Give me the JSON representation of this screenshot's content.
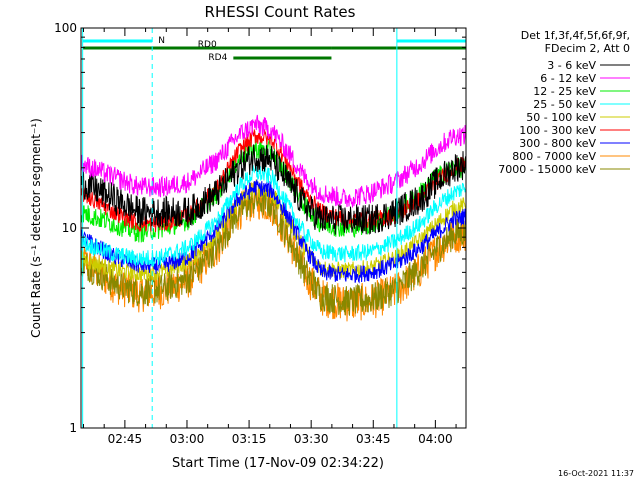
{
  "chart_data": {
    "type": "line",
    "title": "RHESSI Count Rates",
    "xlabel": "Start Time (17-Nov-09 02:34:22)",
    "ylabel": "Count Rate (s⁻¹ detector segment⁻¹)",
    "yscale": "log",
    "ylim": [
      1,
      100
    ],
    "xlim_minutes": [
      0,
      93
    ],
    "x_ticks": [
      {
        "label": "02:45",
        "t": 10.6
      },
      {
        "label": "03:00",
        "t": 25.6
      },
      {
        "label": "03:15",
        "t": 40.6
      },
      {
        "label": "03:30",
        "t": 55.6
      },
      {
        "label": "03:45",
        "t": 70.6
      },
      {
        "label": "04:00",
        "t": 85.6
      }
    ],
    "y_ticks": [
      {
        "label": "1",
        "v": 1
      },
      {
        "label": "10",
        "v": 10
      },
      {
        "label": "100",
        "v": 100
      }
    ],
    "legend": {
      "placement": "right",
      "header_lines": [
        "Det 1f,3f,4f,5f,6f,9f,",
        "FDecim 2, Att 0"
      ]
    },
    "series": [
      {
        "name": "3 - 6 keV",
        "color": "#000000",
        "noise": 0.18,
        "points": [
          [
            0,
            17
          ],
          [
            8,
            14
          ],
          [
            14,
            12
          ],
          [
            20,
            12
          ],
          [
            26,
            12
          ],
          [
            33,
            15
          ],
          [
            38,
            20
          ],
          [
            42,
            23
          ],
          [
            46,
            22
          ],
          [
            50,
            17
          ],
          [
            54,
            13
          ],
          [
            58,
            11
          ],
          [
            64,
            11
          ],
          [
            70,
            11
          ],
          [
            76,
            12
          ],
          [
            82,
            14
          ],
          [
            86,
            17
          ],
          [
            90,
            20
          ],
          [
            93,
            21
          ]
        ]
      },
      {
        "name": "6 - 12 keV",
        "color": "#ff00ff",
        "noise": 0.12,
        "points": [
          [
            0,
            21
          ],
          [
            8,
            18
          ],
          [
            14,
            16
          ],
          [
            20,
            16
          ],
          [
            26,
            17
          ],
          [
            33,
            22
          ],
          [
            38,
            29
          ],
          [
            42,
            33
          ],
          [
            46,
            31
          ],
          [
            50,
            24
          ],
          [
            54,
            18
          ],
          [
            58,
            15
          ],
          [
            64,
            14
          ],
          [
            70,
            15
          ],
          [
            76,
            17
          ],
          [
            82,
            21
          ],
          [
            86,
            25
          ],
          [
            90,
            29
          ],
          [
            93,
            29
          ]
        ]
      },
      {
        "name": "12 - 25 keV",
        "color": "#00ee00",
        "noise": 0.12,
        "points": [
          [
            0,
            12
          ],
          [
            8,
            10.5
          ],
          [
            14,
            9.5
          ],
          [
            20,
            10
          ],
          [
            26,
            11
          ],
          [
            33,
            15
          ],
          [
            38,
            22
          ],
          [
            42,
            25
          ],
          [
            46,
            24
          ],
          [
            50,
            18
          ],
          [
            54,
            13
          ],
          [
            58,
            10.5
          ],
          [
            64,
            10
          ],
          [
            70,
            10.5
          ],
          [
            76,
            12
          ],
          [
            82,
            15
          ],
          [
            86,
            18
          ],
          [
            90,
            20
          ],
          [
            93,
            20
          ]
        ]
      },
      {
        "name": "25 - 50 keV",
        "color": "#00ffff",
        "noise": 0.1,
        "points": [
          [
            0,
            8.5
          ],
          [
            8,
            7.4
          ],
          [
            14,
            7
          ],
          [
            20,
            7.2
          ],
          [
            26,
            8
          ],
          [
            33,
            11
          ],
          [
            38,
            16
          ],
          [
            42,
            19
          ],
          [
            46,
            18
          ],
          [
            50,
            13
          ],
          [
            54,
            9.4
          ],
          [
            58,
            7.6
          ],
          [
            64,
            7.4
          ],
          [
            70,
            7.6
          ],
          [
            76,
            8.6
          ],
          [
            82,
            10.5
          ],
          [
            86,
            13
          ],
          [
            90,
            15
          ],
          [
            93,
            16
          ]
        ]
      },
      {
        "name": "50 - 100 keV",
        "color": "#cccc00",
        "noise": 0.1,
        "points": [
          [
            0,
            7
          ],
          [
            8,
            6.2
          ],
          [
            14,
            5.9
          ],
          [
            20,
            6.1
          ],
          [
            26,
            6.8
          ],
          [
            33,
            9.4
          ],
          [
            38,
            13.5
          ],
          [
            42,
            16
          ],
          [
            46,
            15
          ],
          [
            50,
            11
          ],
          [
            54,
            7.9
          ],
          [
            58,
            6.3
          ],
          [
            64,
            6.1
          ],
          [
            70,
            6.3
          ],
          [
            76,
            7.1
          ],
          [
            82,
            8.7
          ],
          [
            86,
            10.5
          ],
          [
            90,
            12.5
          ],
          [
            93,
            13
          ]
        ]
      },
      {
        "name": "100 - 300 keV",
        "color": "#ff0000",
        "noise": 0.1,
        "points": [
          [
            0,
            15
          ],
          [
            8,
            12
          ],
          [
            14,
            10.5
          ],
          [
            20,
            10.5
          ],
          [
            26,
            11.5
          ],
          [
            33,
            16
          ],
          [
            38,
            24
          ],
          [
            42,
            29
          ],
          [
            46,
            28
          ],
          [
            50,
            21
          ],
          [
            54,
            15
          ],
          [
            58,
            12
          ],
          [
            64,
            11
          ],
          [
            70,
            11
          ],
          [
            76,
            11.5
          ],
          [
            82,
            14
          ],
          [
            86,
            17
          ],
          [
            90,
            20
          ],
          [
            93,
            21
          ]
        ]
      },
      {
        "name": "300 - 800 keV",
        "color": "#0000ff",
        "noise": 0.1,
        "points": [
          [
            0,
            9
          ],
          [
            8,
            7.2
          ],
          [
            14,
            6.5
          ],
          [
            20,
            6.5
          ],
          [
            26,
            7.2
          ],
          [
            33,
            10
          ],
          [
            38,
            14
          ],
          [
            42,
            16
          ],
          [
            46,
            15.5
          ],
          [
            50,
            11.5
          ],
          [
            54,
            8
          ],
          [
            58,
            6
          ],
          [
            64,
            5.8
          ],
          [
            70,
            6
          ],
          [
            76,
            6.6
          ],
          [
            82,
            8
          ],
          [
            86,
            9.5
          ],
          [
            90,
            11
          ],
          [
            93,
            11.5
          ]
        ]
      },
      {
        "name": "800 - 7000 keV",
        "color": "#ff8800",
        "noise": 0.22,
        "points": [
          [
            0,
            7
          ],
          [
            8,
            5.2
          ],
          [
            14,
            4.7
          ],
          [
            20,
            4.9
          ],
          [
            26,
            5.5
          ],
          [
            33,
            8
          ],
          [
            38,
            12
          ],
          [
            42,
            13.8
          ],
          [
            46,
            13
          ],
          [
            50,
            9
          ],
          [
            54,
            6
          ],
          [
            58,
            4.5
          ],
          [
            64,
            4.2
          ],
          [
            70,
            4.3
          ],
          [
            76,
            4.8
          ],
          [
            82,
            6.2
          ],
          [
            86,
            7.8
          ],
          [
            90,
            9.2
          ],
          [
            93,
            9.5
          ]
        ]
      },
      {
        "name": "7000 - 15000 keV",
        "color": "#888800",
        "noise": 0.18,
        "points": [
          [
            0,
            6.8
          ],
          [
            8,
            5.3
          ],
          [
            14,
            4.8
          ],
          [
            20,
            5
          ],
          [
            26,
            5.6
          ],
          [
            33,
            8.1
          ],
          [
            38,
            12.1
          ],
          [
            42,
            13.9
          ],
          [
            46,
            13.1
          ],
          [
            50,
            9.1
          ],
          [
            54,
            6.1
          ],
          [
            58,
            4.6
          ],
          [
            64,
            4.3
          ],
          [
            70,
            4.4
          ],
          [
            76,
            4.9
          ],
          [
            82,
            6.3
          ],
          [
            86,
            7.9
          ],
          [
            90,
            9.3
          ],
          [
            93,
            9.6
          ]
        ]
      }
    ],
    "vertical_lines": [
      {
        "t": 0.4,
        "style": "solid",
        "color": "#00ffff"
      },
      {
        "t": 17.2,
        "style": "dashed",
        "color": "#00ffff"
      },
      {
        "t": 76.3,
        "style": "solid",
        "color": "#00ffff"
      },
      {
        "t": 93.0,
        "style": "dashed",
        "color": "#00ffff"
      }
    ],
    "flag_bars": [
      {
        "label": "N",
        "color": "#00ffff",
        "segments": [
          [
            0.4,
            17.2
          ],
          [
            76.3,
            93.0
          ]
        ]
      },
      {
        "label": "RD0",
        "color": "#007700",
        "segments": [
          [
            0.4,
            60.5
          ],
          [
            60.5,
            93.0
          ]
        ]
      },
      {
        "label": "RD4",
        "color": "#007700",
        "segments": [
          [
            36.8,
            60.5
          ]
        ]
      }
    ]
  },
  "timestamp": "16-Oct-2021 11:37"
}
